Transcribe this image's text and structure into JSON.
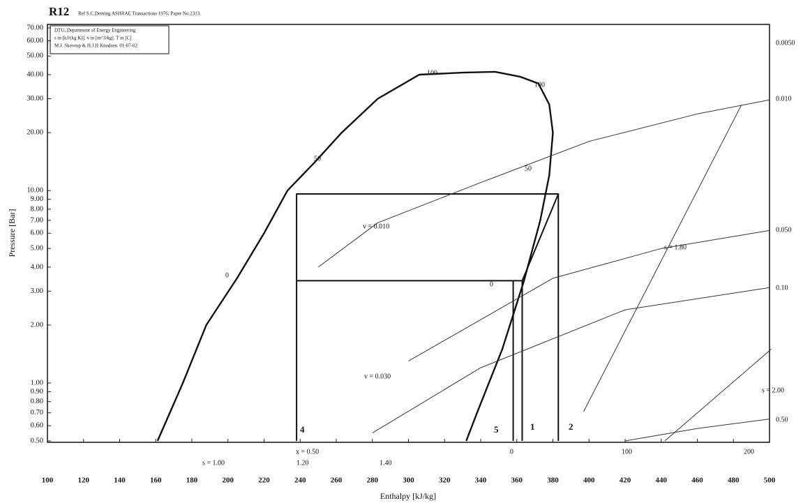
{
  "chart_data": {
    "type": "line",
    "title": "R12",
    "x_label": "Enthalpy [kJ/kg]",
    "y_label": "Pressure [Bar]",
    "log_y": true,
    "grid": false,
    "xlim": [
      100,
      500
    ],
    "ylim": [
      0.5,
      70
    ],
    "xticks": [
      100,
      120,
      140,
      160,
      180,
      200,
      220,
      240,
      260,
      280,
      300,
      320,
      340,
      360,
      380,
      400,
      420,
      440,
      460,
      480,
      500
    ],
    "yticks": [
      {
        "value": 0.5,
        "label": "0.50"
      },
      {
        "value": 0.6,
        "label": "0.60"
      },
      {
        "value": 0.7,
        "label": "0.70"
      },
      {
        "value": 0.8,
        "label": "0.80"
      },
      {
        "value": 0.9,
        "label": "0.90"
      },
      {
        "value": 1,
        "label": "1.00"
      },
      {
        "value": 2,
        "label": "2.00"
      },
      {
        "value": 3,
        "label": "3.00"
      },
      {
        "value": 4,
        "label": "4.00"
      },
      {
        "value": 5,
        "label": "5.00"
      },
      {
        "value": 6,
        "label": "6.00"
      },
      {
        "value": 7,
        "label": "7.00"
      },
      {
        "value": 8,
        "label": "8.00"
      },
      {
        "value": 9,
        "label": "9.00"
      },
      {
        "value": 10,
        "label": "10.00"
      },
      {
        "value": 20,
        "label": "20.00"
      },
      {
        "value": 30,
        "label": "30.00"
      },
      {
        "value": 40,
        "label": "40.00"
      },
      {
        "value": 50,
        "label": "50.00"
      },
      {
        "value": 60,
        "label": "60.00"
      },
      {
        "value": 70,
        "label": "70.00"
      }
    ],
    "series": [
      {
        "color": "#111111",
        "width": 2.4,
        "x": [
          161,
          175,
          188,
          205,
          220,
          233,
          248,
          263,
          283,
          306,
          330,
          348,
          362,
          372,
          378,
          380,
          378,
          373,
          364,
          352,
          338,
          332
        ],
        "values": [
          0.5,
          1.0,
          2.0,
          3.5,
          6.0,
          10,
          14,
          20,
          30,
          40,
          41,
          41.4,
          39,
          36,
          28,
          20,
          12,
          7,
          3.4,
          1.5,
          0.7,
          0.5
        ]
      },
      {
        "color": "#111111",
        "width": 2,
        "x": [
          238,
          363,
          383,
          238,
          238
        ],
        "values": [
          3.4,
          3.4,
          9.6,
          9.6,
          3.4
        ]
      },
      {
        "color": "#111111",
        "width": 2,
        "x": [
          238,
          238
        ],
        "values": [
          3.4,
          0.5
        ]
      },
      {
        "color": "#111111",
        "width": 2,
        "x": [
          358,
          358
        ],
        "values": [
          3.4,
          0.5
        ]
      },
      {
        "color": "#111111",
        "width": 2,
        "x": [
          363,
          363
        ],
        "values": [
          3.4,
          0.5
        ]
      },
      {
        "color": "#111111",
        "width": 2,
        "x": [
          383,
          383
        ],
        "values": [
          9.6,
          0.5
        ]
      },
      {
        "color": "#333333",
        "width": 1,
        "x": [
          250,
          283,
          340,
          400,
          460,
          500
        ],
        "values": [
          4,
          6.8,
          11,
          18,
          25,
          29.6
        ]
      },
      {
        "color": "#333333",
        "width": 1,
        "x": [
          300,
          380,
          440,
          500
        ],
        "values": [
          1.3,
          3.5,
          5,
          6.2
        ]
      },
      {
        "color": "#333333",
        "width": 1,
        "x": [
          280,
          340,
          420,
          500
        ],
        "values": [
          0.55,
          1.2,
          2.4,
          3.13
        ]
      },
      {
        "color": "#333333",
        "width": 1,
        "x": [
          420,
          460,
          500
        ],
        "values": [
          0.5,
          0.58,
          0.65
        ]
      },
      {
        "color": "#333333",
        "width": 1,
        "x": [
          397,
          484.5
        ],
        "values": [
          0.71,
          27.9
        ]
      },
      {
        "color": "#333333",
        "width": 1,
        "x": [
          442,
          501
        ],
        "values": [
          0.5,
          1.5
        ]
      }
    ],
    "annotations": [
      "Ref S.C.Deming ASHRAE Transactions 1976, Paper No.2313.",
      "DTU, Department of Energy Engineering",
      "s in [kJ/(kg K)]. v in [m^3/kg]. T in [C]",
      "M.J. Skovrup & H.J.H Knudsen. 01-07-02",
      "100",
      "100",
      "50",
      "50",
      "0",
      "0",
      "v = 0.010",
      "v = 0.030",
      "s = 1.80",
      "s = 2.00",
      "0.0050",
      "0.010",
      "0.050",
      "0.10",
      "0.50",
      "4",
      "5",
      "1",
      "2",
      "x = 0.50",
      "s = 1.00",
      "1.20",
      "1.40",
      "0",
      "100",
      "200"
    ]
  }
}
